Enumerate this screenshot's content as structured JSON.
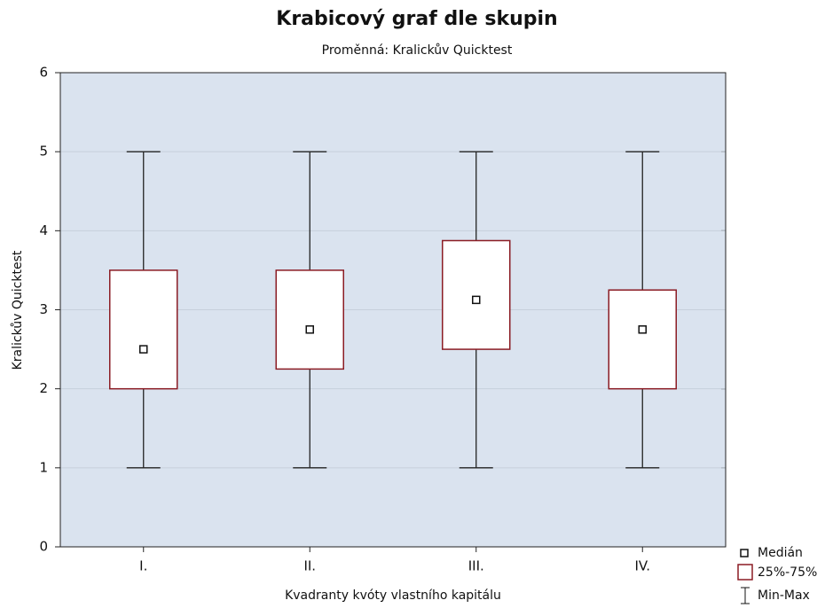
{
  "chart_data": {
    "type": "box",
    "title": "Krabicový graf dle skupin",
    "subtitle": "Proměnná: Kralickův Quicktest",
    "x_label": "Kvadranty kvóty vlastního kapitálu",
    "y_label": "Kralickův Quicktest",
    "categories": [
      "I.",
      "II.",
      "III.",
      "IV."
    ],
    "min": [
      1,
      1,
      1,
      1
    ],
    "q1": [
      2,
      2.25,
      2.5,
      2
    ],
    "median": [
      2.5,
      2.75,
      3.125,
      2.75
    ],
    "q3": [
      3.5,
      3.5,
      3.875,
      3.25
    ],
    "max": [
      5,
      5,
      5,
      5
    ],
    "ylim": [
      0,
      6
    ],
    "yticks": [
      0,
      1,
      2,
      3,
      4,
      5,
      6
    ],
    "grid": true,
    "box_color": "#8b1c24",
    "plot_background": "#dae3ef",
    "legend": {
      "median": "Medián",
      "box": "25%-75%",
      "whisker": "Min-Max"
    },
    "legend_position": "lower right"
  }
}
